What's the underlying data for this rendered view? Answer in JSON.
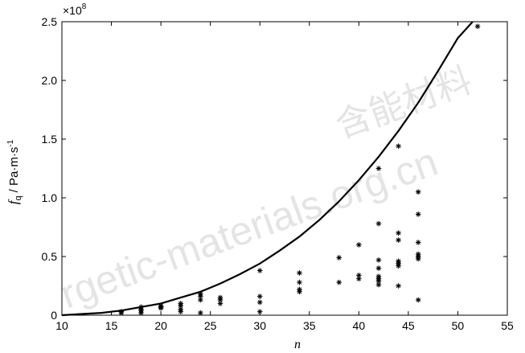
{
  "chart_data": {
    "type": "scatter",
    "title": "",
    "xlabel": "n",
    "ylabel_main": "f",
    "ylabel_sub": "q",
    "ylabel_units": "/ Pa·m·s",
    "ylabel_sup": "-1",
    "y_exponent_label": "×10",
    "y_exponent_power": "8",
    "xlim": [
      10,
      55
    ],
    "ylim": [
      0,
      2.5
    ],
    "x_ticks": [
      10,
      15,
      20,
      25,
      30,
      35,
      40,
      45,
      50,
      55
    ],
    "y_ticks": [
      0,
      0.5,
      1.0,
      1.5,
      2.0,
      2.5
    ],
    "y_tick_labels": [
      "0",
      "0.5",
      "1.0",
      "1.5",
      "2.0",
      "2.5"
    ],
    "grid": false,
    "series": [
      {
        "marker": "asterisk",
        "points": [
          [
            16,
            0.02
          ],
          [
            16,
            0.03
          ],
          [
            18,
            0.02
          ],
          [
            18,
            0.04
          ],
          [
            18,
            0.05
          ],
          [
            18,
            0.07
          ],
          [
            20,
            0.06
          ],
          [
            20,
            0.07
          ],
          [
            20,
            0.08
          ],
          [
            22,
            0.03
          ],
          [
            22,
            0.05
          ],
          [
            22,
            0.08
          ],
          [
            22,
            0.1
          ],
          [
            24,
            0.02
          ],
          [
            24,
            0.13
          ],
          [
            24,
            0.16
          ],
          [
            24,
            0.18
          ],
          [
            26,
            0.1
          ],
          [
            26,
            0.13
          ],
          [
            26,
            0.15
          ],
          [
            30,
            0.03
          ],
          [
            30,
            0.11
          ],
          [
            30,
            0.16
          ],
          [
            30,
            0.38
          ],
          [
            34,
            0.2
          ],
          [
            34,
            0.22
          ],
          [
            34,
            0.28
          ],
          [
            34,
            0.36
          ],
          [
            38,
            0.28
          ],
          [
            38,
            0.49
          ],
          [
            40,
            0.31
          ],
          [
            40,
            0.34
          ],
          [
            40,
            0.6
          ],
          [
            42,
            0.26
          ],
          [
            42,
            0.29
          ],
          [
            42,
            0.31
          ],
          [
            42,
            0.33
          ],
          [
            42,
            0.4
          ],
          [
            42,
            0.47
          ],
          [
            42,
            0.78
          ],
          [
            42,
            1.25
          ],
          [
            44,
            0.25
          ],
          [
            44,
            0.42
          ],
          [
            44,
            0.44
          ],
          [
            44,
            0.46
          ],
          [
            44,
            0.64
          ],
          [
            44,
            0.7
          ],
          [
            44,
            1.44
          ],
          [
            46,
            0.13
          ],
          [
            46,
            0.48
          ],
          [
            46,
            0.5
          ],
          [
            46,
            0.52
          ],
          [
            46,
            0.62
          ],
          [
            46,
            0.86
          ],
          [
            46,
            1.05
          ],
          [
            52,
            2.46
          ]
        ]
      },
      {
        "marker": "line",
        "points": [
          [
            10,
            0
          ],
          [
            12,
            0.01
          ],
          [
            14,
            0.02
          ],
          [
            16,
            0.04
          ],
          [
            18,
            0.07
          ],
          [
            20,
            0.1
          ],
          [
            22,
            0.15
          ],
          [
            24,
            0.2
          ],
          [
            26,
            0.27
          ],
          [
            28,
            0.35
          ],
          [
            30,
            0.44
          ],
          [
            32,
            0.55
          ],
          [
            34,
            0.67
          ],
          [
            36,
            0.81
          ],
          [
            38,
            0.97
          ],
          [
            40,
            1.15
          ],
          [
            42,
            1.35
          ],
          [
            44,
            1.57
          ],
          [
            46,
            1.81
          ],
          [
            48,
            2.08
          ],
          [
            50,
            2.36
          ],
          [
            51.5,
            2.5
          ]
        ]
      }
    ]
  }
}
